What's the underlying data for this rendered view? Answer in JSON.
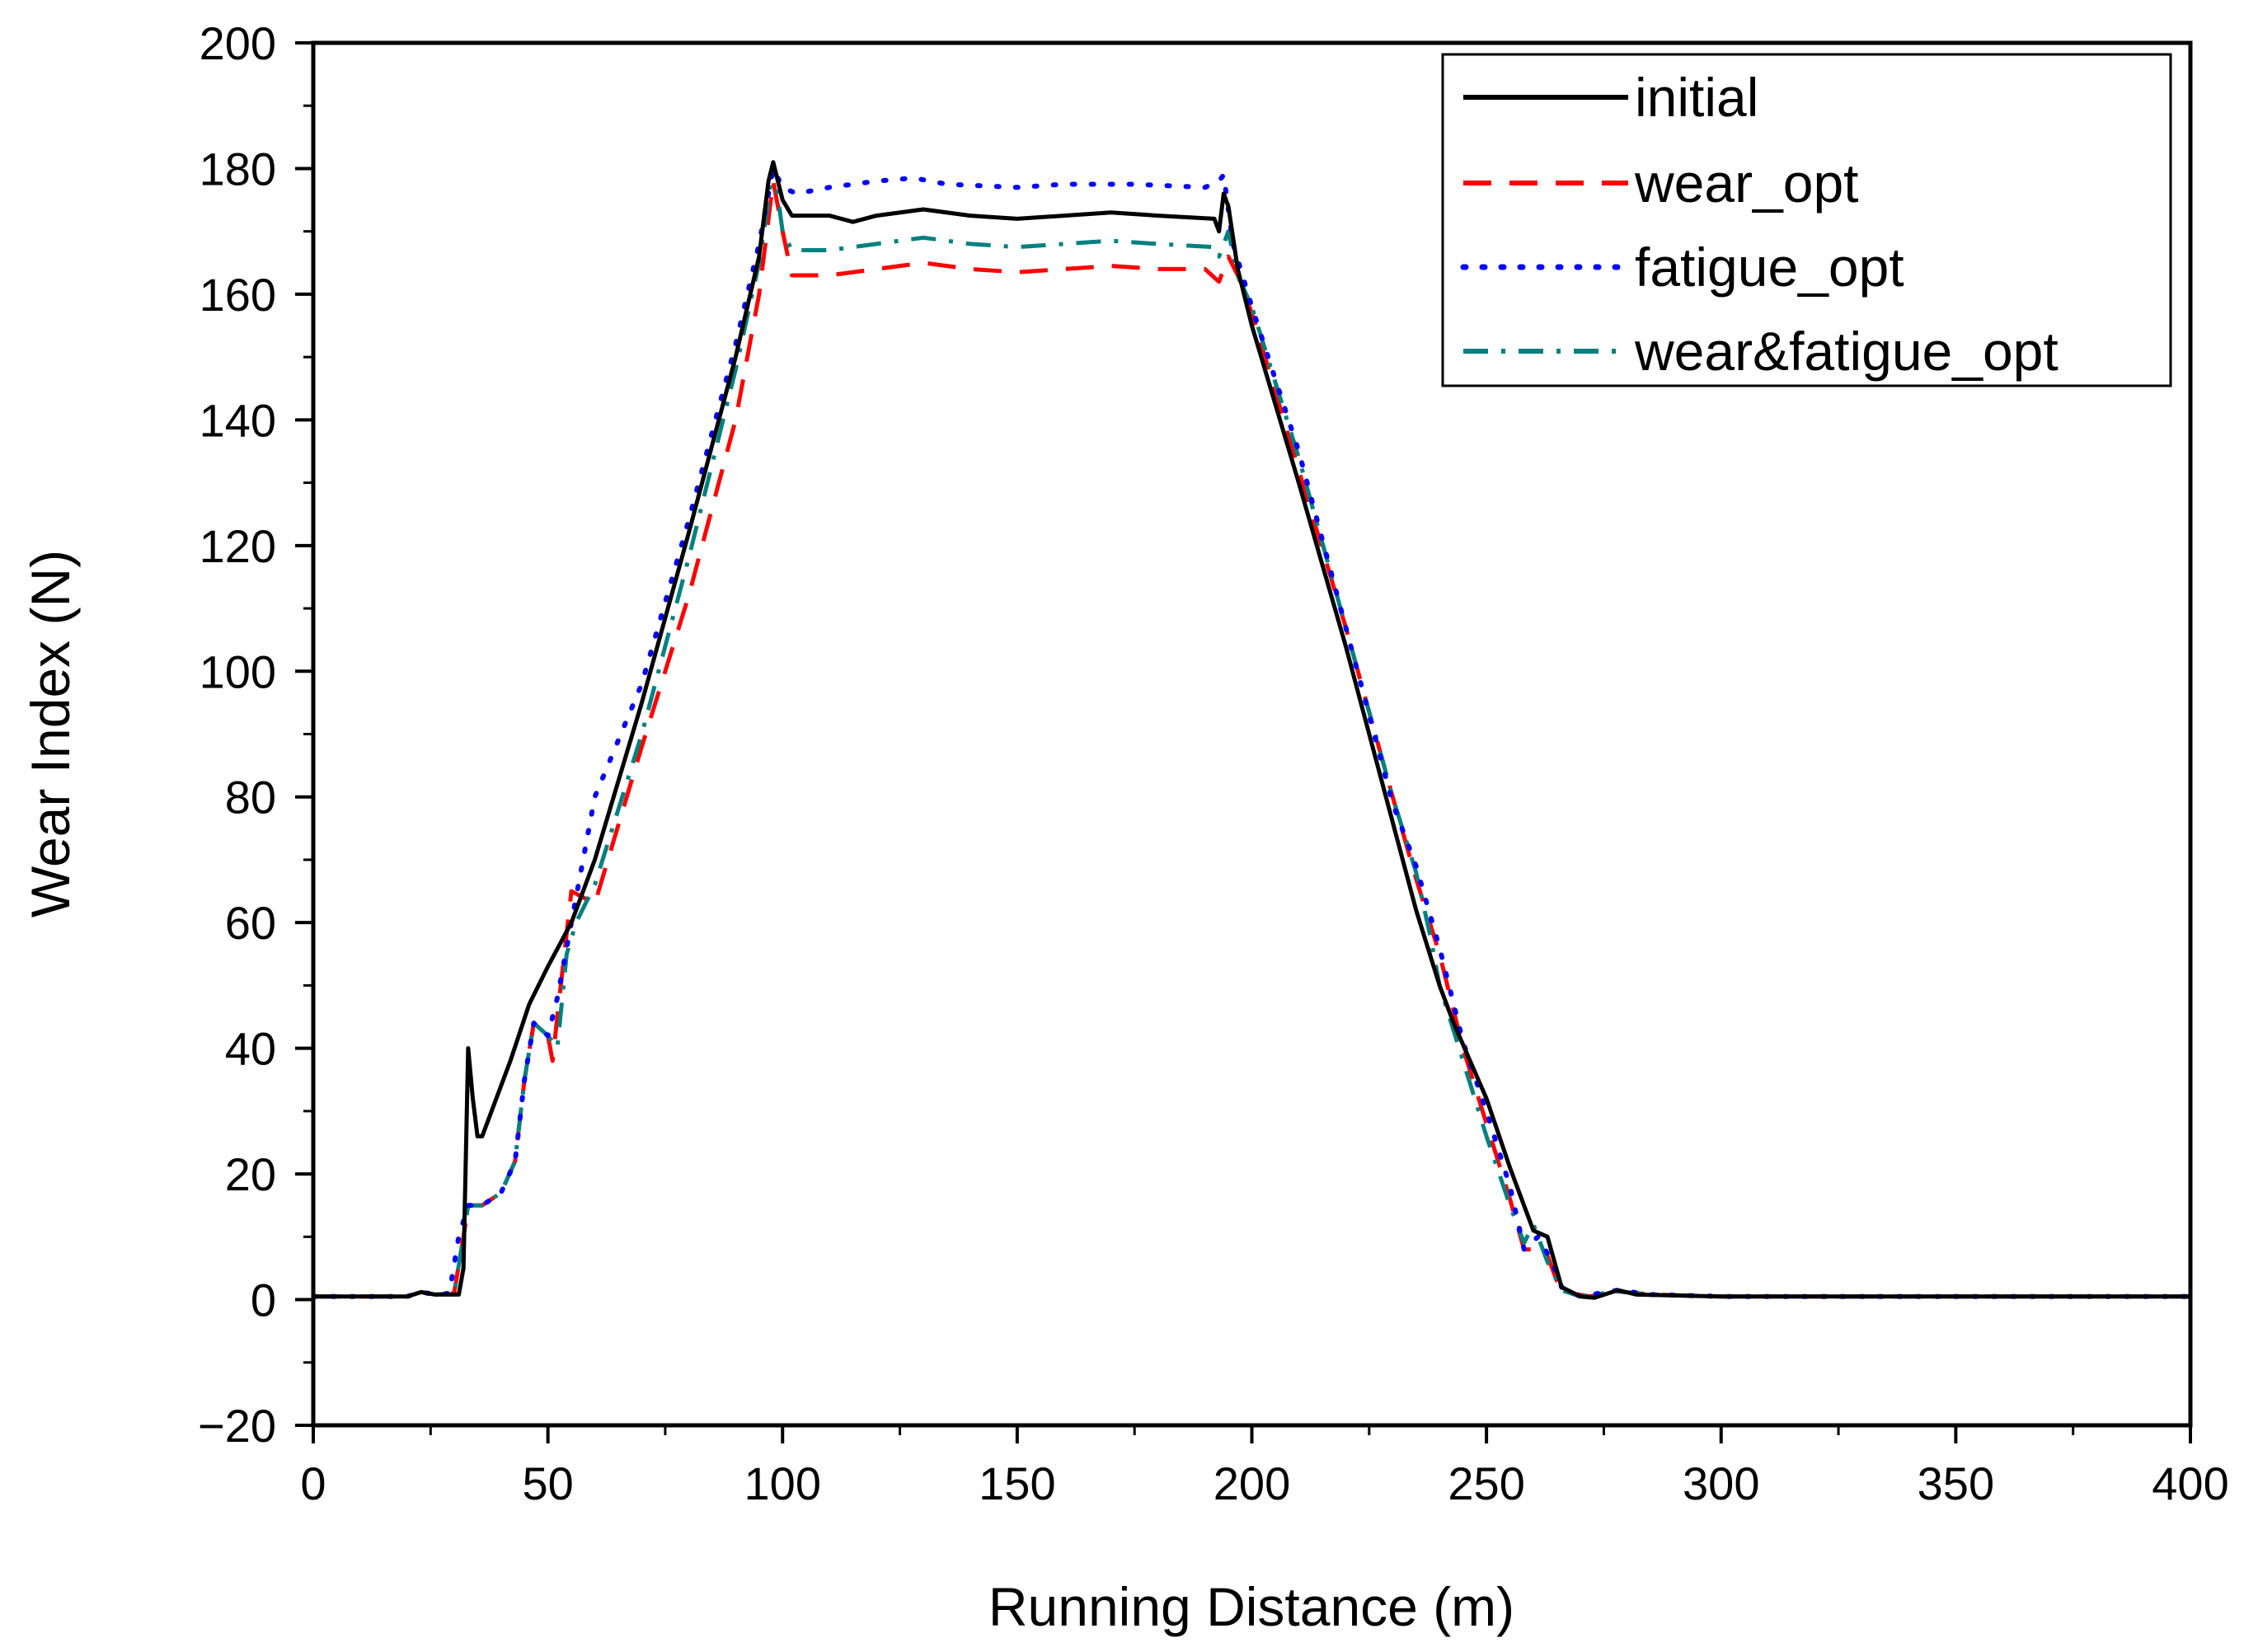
{
  "chart_data": {
    "type": "line",
    "title": "",
    "xlabel": "Running Distance (m)",
    "ylabel": "Wear Index (N)",
    "xlim": [
      0,
      400
    ],
    "ylim": [
      -20,
      200
    ],
    "xticks": [
      0,
      50,
      100,
      150,
      200,
      250,
      300,
      350,
      400
    ],
    "yticks": [
      -20,
      0,
      20,
      40,
      60,
      80,
      100,
      120,
      140,
      160,
      180,
      200
    ],
    "xtick_labels": [
      "0",
      "50",
      "100",
      "150",
      "200",
      "250",
      "300",
      "350",
      "400"
    ],
    "ytick_labels": [
      "−20",
      "0",
      "20",
      "40",
      "60",
      "80",
      "100",
      "120",
      "140",
      "160",
      "180",
      "200"
    ],
    "grid": false,
    "legend_position": "top-right",
    "series": [
      {
        "name": "initial",
        "color": "#000000",
        "dash": "solid",
        "points": [
          [
            0,
            0.5
          ],
          [
            20,
            0.5
          ],
          [
            23,
            1.2
          ],
          [
            26,
            0.8
          ],
          [
            31,
            0.8
          ],
          [
            32,
            5
          ],
          [
            33,
            40
          ],
          [
            34,
            32
          ],
          [
            35,
            26
          ],
          [
            36,
            26
          ],
          [
            38,
            30
          ],
          [
            42,
            38
          ],
          [
            46,
            47
          ],
          [
            50,
            53
          ],
          [
            55,
            60
          ],
          [
            60,
            70
          ],
          [
            70,
            95
          ],
          [
            80,
            122
          ],
          [
            90,
            150
          ],
          [
            95,
            166
          ],
          [
            97,
            178
          ],
          [
            98,
            181
          ],
          [
            100,
            175
          ],
          [
            102,
            172.5
          ],
          [
            110,
            172.5
          ],
          [
            115,
            171.5
          ],
          [
            120,
            172.5
          ],
          [
            130,
            173.5
          ],
          [
            140,
            172.5
          ],
          [
            150,
            172
          ],
          [
            160,
            172.5
          ],
          [
            170,
            173
          ],
          [
            180,
            172.5
          ],
          [
            192,
            172
          ],
          [
            193,
            170
          ],
          [
            194,
            176
          ],
          [
            195,
            174
          ],
          [
            197,
            164
          ],
          [
            200,
            155
          ],
          [
            210,
            130
          ],
          [
            220,
            104
          ],
          [
            230,
            76
          ],
          [
            235,
            62
          ],
          [
            240,
            50
          ],
          [
            243,
            44
          ],
          [
            250,
            32
          ],
          [
            255,
            21
          ],
          [
            260,
            11
          ],
          [
            263,
            10
          ],
          [
            266,
            2
          ],
          [
            270,
            0.5
          ],
          [
            273,
            0.3
          ],
          [
            278,
            1.5
          ],
          [
            282,
            0.8
          ],
          [
            300,
            0.5
          ],
          [
            400,
            0.5
          ]
        ]
      },
      {
        "name": "wear_opt",
        "color": "#ff0000",
        "dash": "dashed",
        "points": [
          [
            0,
            0.5
          ],
          [
            20,
            0.5
          ],
          [
            23,
            1.2
          ],
          [
            26,
            0.8
          ],
          [
            30,
            1
          ],
          [
            32,
            10
          ],
          [
            33,
            15
          ],
          [
            36,
            15
          ],
          [
            40,
            17
          ],
          [
            43,
            22
          ],
          [
            45,
            35
          ],
          [
            47,
            44
          ],
          [
            50,
            42
          ],
          [
            51,
            38
          ],
          [
            52,
            45
          ],
          [
            55,
            65
          ],
          [
            60,
            63
          ],
          [
            70,
            88
          ],
          [
            80,
            112
          ],
          [
            90,
            140
          ],
          [
            95,
            160
          ],
          [
            97,
            172
          ],
          [
            98,
            178
          ],
          [
            100,
            170
          ],
          [
            102,
            163
          ],
          [
            110,
            163
          ],
          [
            120,
            164
          ],
          [
            130,
            165
          ],
          [
            140,
            164
          ],
          [
            150,
            163.5
          ],
          [
            160,
            164
          ],
          [
            170,
            164.5
          ],
          [
            180,
            164
          ],
          [
            190,
            164
          ],
          [
            193,
            162
          ],
          [
            195,
            166
          ],
          [
            197,
            163
          ],
          [
            200,
            157
          ],
          [
            210,
            132
          ],
          [
            220,
            107
          ],
          [
            230,
            80
          ],
          [
            235,
            67
          ],
          [
            240,
            55
          ],
          [
            245,
            40
          ],
          [
            250,
            28
          ],
          [
            255,
            16
          ],
          [
            258,
            8
          ],
          [
            261,
            8
          ],
          [
            263,
            7
          ],
          [
            265,
            3
          ],
          [
            268,
            1
          ],
          [
            272,
            0.5
          ],
          [
            278,
            1.3
          ],
          [
            285,
            0.8
          ],
          [
            300,
            0.5
          ],
          [
            400,
            0.5
          ]
        ]
      },
      {
        "name": "fatigue_opt",
        "color": "#0000ff",
        "dash": "dotted",
        "points": [
          [
            0,
            0.5
          ],
          [
            20,
            0.5
          ],
          [
            23,
            1.2
          ],
          [
            26,
            0.8
          ],
          [
            29,
            1
          ],
          [
            31,
            10
          ],
          [
            33,
            15
          ],
          [
            36,
            15
          ],
          [
            40,
            17
          ],
          [
            43,
            22
          ],
          [
            45,
            35
          ],
          [
            47,
            44
          ],
          [
            50,
            42
          ],
          [
            52,
            48
          ],
          [
            55,
            60
          ],
          [
            60,
            80
          ],
          [
            70,
            98
          ],
          [
            80,
            124
          ],
          [
            90,
            152
          ],
          [
            95,
            168
          ],
          [
            97,
            176
          ],
          [
            98,
            180
          ],
          [
            100,
            177
          ],
          [
            103,
            176
          ],
          [
            110,
            177
          ],
          [
            120,
            178
          ],
          [
            128,
            178.5
          ],
          [
            135,
            177.5
          ],
          [
            150,
            177
          ],
          [
            160,
            177.5
          ],
          [
            175,
            177.5
          ],
          [
            190,
            177
          ],
          [
            193,
            178
          ],
          [
            194,
            179
          ],
          [
            196,
            168
          ],
          [
            200,
            158
          ],
          [
            210,
            135
          ],
          [
            220,
            107
          ],
          [
            230,
            79
          ],
          [
            235,
            69
          ],
          [
            240,
            56
          ],
          [
            245,
            41
          ],
          [
            250,
            30
          ],
          [
            255,
            18
          ],
          [
            258,
            8
          ],
          [
            261,
            10
          ],
          [
            264,
            6
          ],
          [
            266,
            2
          ],
          [
            270,
            0.5
          ],
          [
            278,
            1.5
          ],
          [
            285,
            0.8
          ],
          [
            300,
            0.5
          ],
          [
            400,
            0.5
          ]
        ]
      },
      {
        "name": "wear&fatigue_opt",
        "color": "#008080",
        "dash": "dashdot",
        "points": [
          [
            0,
            0.5
          ],
          [
            20,
            0.5
          ],
          [
            23,
            1.2
          ],
          [
            26,
            0.8
          ],
          [
            30,
            1
          ],
          [
            32,
            10
          ],
          [
            33,
            15
          ],
          [
            36,
            15
          ],
          [
            40,
            17
          ],
          [
            43,
            22
          ],
          [
            45,
            35
          ],
          [
            47,
            44
          ],
          [
            50,
            42
          ],
          [
            52,
            40
          ],
          [
            54,
            55
          ],
          [
            56,
            60
          ],
          [
            60,
            66
          ],
          [
            70,
            90
          ],
          [
            80,
            118
          ],
          [
            90,
            148
          ],
          [
            95,
            165
          ],
          [
            97,
            175
          ],
          [
            98,
            181
          ],
          [
            100,
            170
          ],
          [
            102,
            167
          ],
          [
            110,
            167
          ],
          [
            120,
            168
          ],
          [
            130,
            169
          ],
          [
            140,
            168
          ],
          [
            150,
            167.5
          ],
          [
            160,
            168
          ],
          [
            170,
            168.5
          ],
          [
            180,
            168
          ],
          [
            192,
            167.5
          ],
          [
            193,
            166
          ],
          [
            195,
            170
          ],
          [
            197,
            163
          ],
          [
            200,
            158
          ],
          [
            210,
            134
          ],
          [
            220,
            107
          ],
          [
            230,
            80
          ],
          [
            235,
            68
          ],
          [
            238,
            58
          ],
          [
            240,
            50
          ],
          [
            245,
            38
          ],
          [
            250,
            26
          ],
          [
            255,
            15
          ],
          [
            258,
            9
          ],
          [
            260,
            12
          ],
          [
            263,
            6
          ],
          [
            266,
            1.5
          ],
          [
            270,
            0.5
          ],
          [
            278,
            1.3
          ],
          [
            285,
            0.8
          ],
          [
            300,
            0.5
          ],
          [
            400,
            0.5
          ]
        ]
      }
    ]
  }
}
